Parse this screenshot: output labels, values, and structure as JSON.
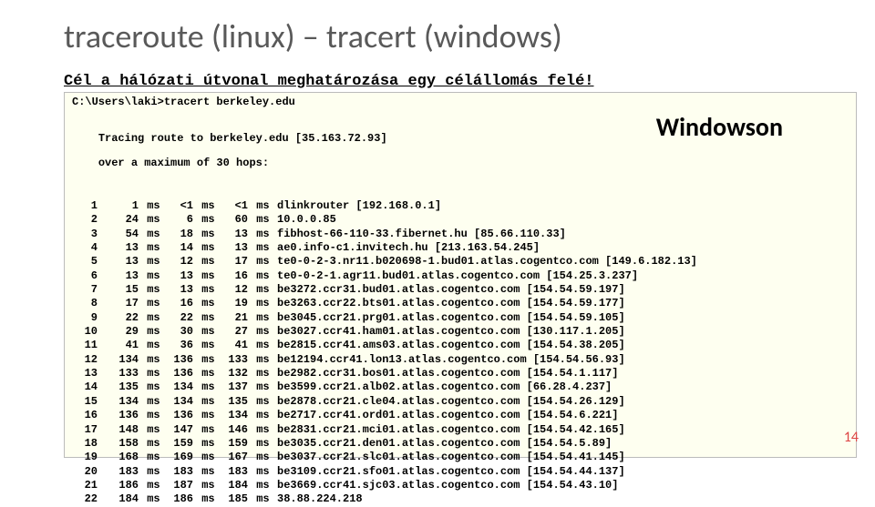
{
  "title": "traceroute (linux) – tracert (windows)",
  "subtitle": "Cél a hálózati útvonal meghatározása egy célállomás felé!",
  "terminal": {
    "command": "C:\\Users\\laki>tracert berkeley.edu",
    "tracing1": "Tracing route to berkeley.edu [35.163.72.93]",
    "tracing2": "over a maximum of 30 hops:",
    "label": "Windowson",
    "hops": [
      {
        "n": "1",
        "t1": "1",
        "u1": "ms",
        "t2": "<1",
        "u2": "ms",
        "t3": "<1",
        "u3": "ms",
        "host": "dlinkrouter [192.168.0.1]"
      },
      {
        "n": "2",
        "t1": "24",
        "u1": "ms",
        "t2": "6",
        "u2": "ms",
        "t3": "60",
        "u3": "ms",
        "host": "10.0.0.85"
      },
      {
        "n": "3",
        "t1": "54",
        "u1": "ms",
        "t2": "18",
        "u2": "ms",
        "t3": "13",
        "u3": "ms",
        "host": "fibhost-66-110-33.fibernet.hu [85.66.110.33]"
      },
      {
        "n": "4",
        "t1": "13",
        "u1": "ms",
        "t2": "14",
        "u2": "ms",
        "t3": "13",
        "u3": "ms",
        "host": "ae0.info-c1.invitech.hu [213.163.54.245]"
      },
      {
        "n": "5",
        "t1": "13",
        "u1": "ms",
        "t2": "12",
        "u2": "ms",
        "t3": "17",
        "u3": "ms",
        "host": "te0-0-2-3.nr11.b020698-1.bud01.atlas.cogentco.com [149.6.182.13]"
      },
      {
        "n": "6",
        "t1": "13",
        "u1": "ms",
        "t2": "13",
        "u2": "ms",
        "t3": "16",
        "u3": "ms",
        "host": "te0-0-2-1.agr11.bud01.atlas.cogentco.com [154.25.3.237]"
      },
      {
        "n": "7",
        "t1": "15",
        "u1": "ms",
        "t2": "13",
        "u2": "ms",
        "t3": "12",
        "u3": "ms",
        "host": "be3272.ccr31.bud01.atlas.cogentco.com [154.54.59.197]"
      },
      {
        "n": "8",
        "t1": "17",
        "u1": "ms",
        "t2": "16",
        "u2": "ms",
        "t3": "19",
        "u3": "ms",
        "host": "be3263.ccr22.bts01.atlas.cogentco.com [154.54.59.177]"
      },
      {
        "n": "9",
        "t1": "22",
        "u1": "ms",
        "t2": "22",
        "u2": "ms",
        "t3": "21",
        "u3": "ms",
        "host": "be3045.ccr21.prg01.atlas.cogentco.com [154.54.59.105]"
      },
      {
        "n": "10",
        "t1": "29",
        "u1": "ms",
        "t2": "30",
        "u2": "ms",
        "t3": "27",
        "u3": "ms",
        "host": "be3027.ccr41.ham01.atlas.cogentco.com [130.117.1.205]"
      },
      {
        "n": "11",
        "t1": "41",
        "u1": "ms",
        "t2": "36",
        "u2": "ms",
        "t3": "41",
        "u3": "ms",
        "host": "be2815.ccr41.ams03.atlas.cogentco.com [154.54.38.205]"
      },
      {
        "n": "12",
        "t1": "134",
        "u1": "ms",
        "t2": "136",
        "u2": "ms",
        "t3": "133",
        "u3": "ms",
        "host": "be12194.ccr41.lon13.atlas.cogentco.com [154.54.56.93]"
      },
      {
        "n": "13",
        "t1": "133",
        "u1": "ms",
        "t2": "136",
        "u2": "ms",
        "t3": "132",
        "u3": "ms",
        "host": "be2982.ccr31.bos01.atlas.cogentco.com [154.54.1.117]"
      },
      {
        "n": "14",
        "t1": "135",
        "u1": "ms",
        "t2": "134",
        "u2": "ms",
        "t3": "137",
        "u3": "ms",
        "host": "be3599.ccr21.alb02.atlas.cogentco.com [66.28.4.237]"
      },
      {
        "n": "15",
        "t1": "134",
        "u1": "ms",
        "t2": "134",
        "u2": "ms",
        "t3": "135",
        "u3": "ms",
        "host": "be2878.ccr21.cle04.atlas.cogentco.com [154.54.26.129]"
      },
      {
        "n": "16",
        "t1": "136",
        "u1": "ms",
        "t2": "136",
        "u2": "ms",
        "t3": "134",
        "u3": "ms",
        "host": "be2717.ccr41.ord01.atlas.cogentco.com [154.54.6.221]"
      },
      {
        "n": "17",
        "t1": "148",
        "u1": "ms",
        "t2": "147",
        "u2": "ms",
        "t3": "146",
        "u3": "ms",
        "host": "be2831.ccr21.mci01.atlas.cogentco.com [154.54.42.165]"
      },
      {
        "n": "18",
        "t1": "158",
        "u1": "ms",
        "t2": "159",
        "u2": "ms",
        "t3": "159",
        "u3": "ms",
        "host": "be3035.ccr21.den01.atlas.cogentco.com [154.54.5.89]"
      },
      {
        "n": "19",
        "t1": "168",
        "u1": "ms",
        "t2": "169",
        "u2": "ms",
        "t3": "167",
        "u3": "ms",
        "host": "be3037.ccr21.slc01.atlas.cogentco.com [154.54.41.145]"
      },
      {
        "n": "20",
        "t1": "183",
        "u1": "ms",
        "t2": "183",
        "u2": "ms",
        "t3": "183",
        "u3": "ms",
        "host": "be3109.ccr21.sfo01.atlas.cogentco.com [154.54.44.137]"
      },
      {
        "n": "21",
        "t1": "186",
        "u1": "ms",
        "t2": "187",
        "u2": "ms",
        "t3": "184",
        "u3": "ms",
        "host": "be3669.ccr41.sjc03.atlas.cogentco.com [154.54.43.10]"
      },
      {
        "n": "22",
        "t1": "184",
        "u1": "ms",
        "t2": "186",
        "u2": "ms",
        "t3": "185",
        "u3": "ms",
        "host": "38.88.224.218"
      }
    ]
  },
  "pageNum": "14",
  "colors": {
    "titleColor": "#595959",
    "terminalBg": "#fefff0",
    "terminalBorder": "#bbbbbb",
    "pageNumColor": "#d44"
  }
}
